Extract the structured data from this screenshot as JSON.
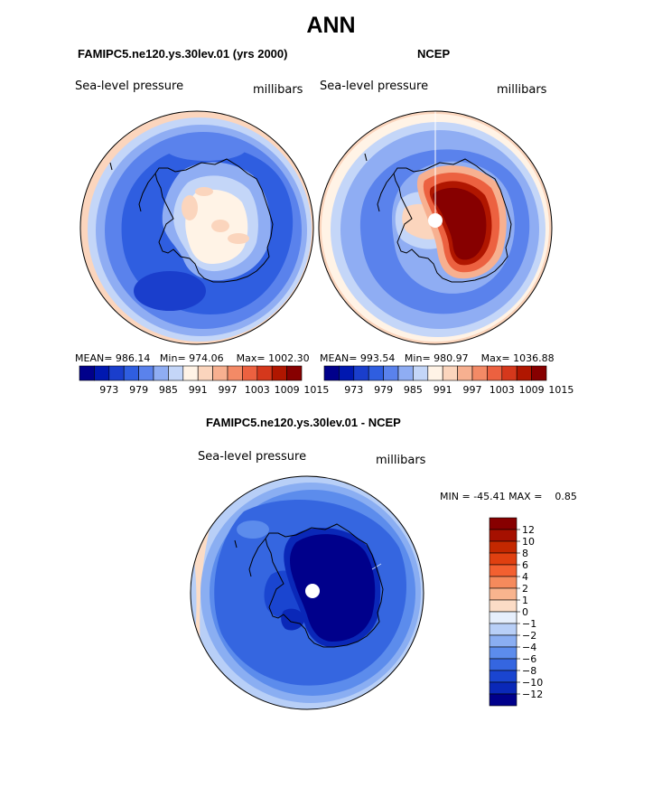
{
  "title": "ANN",
  "panels": [
    {
      "id": "model",
      "title": "FAMIPC5.ne120.ys.30lev.01 (yrs 2000)",
      "variable": "Sea-level pressure",
      "units": "millibars",
      "mean_label": "MEAN=",
      "mean": "986.14",
      "min_label": "Min=",
      "min": "974.06",
      "max_label": "Max=",
      "max": "1002.30"
    },
    {
      "id": "obs",
      "title": "NCEP",
      "variable": "Sea-level pressure",
      "units": "millibars",
      "mean_label": "MEAN=",
      "mean": "993.54",
      "min_label": "Min=",
      "min": "980.97",
      "max_label": "Max=",
      "max": "1036.88"
    },
    {
      "id": "diff",
      "title": "FAMIPC5.ne120.ys.30lev.01 - NCEP",
      "variable": "Sea-level pressure",
      "units": "millibars",
      "min_label": "MIN =",
      "min": "-45.41",
      "max_label": "MAX =",
      "max": "0.85"
    }
  ],
  "colorbar_horizontal": {
    "tick_labels": [
      "973",
      "979",
      "985",
      "991",
      "997",
      "1003",
      "1009",
      "1015"
    ],
    "colors": [
      "#00008b",
      "#0018b0",
      "#1a3ecc",
      "#2f5ee0",
      "#5a82ec",
      "#8fadf3",
      "#c4d6f8",
      "#fff3e6",
      "#fbd5bd",
      "#f7b090",
      "#f38a66",
      "#ec6140",
      "#d5381c",
      "#b01600",
      "#870000"
    ]
  },
  "colorbar_vertical": {
    "tick_labels": [
      "12",
      "10",
      "8",
      "6",
      "4",
      "2",
      "1",
      "0",
      "−1",
      "−2",
      "−4",
      "−6",
      "−8",
      "−10",
      "−12"
    ],
    "colors": [
      "#870000",
      "#a51000",
      "#c42800",
      "#e04010",
      "#f36030",
      "#f58a5c",
      "#f8b48e",
      "#fbdcc6",
      "#e6effc",
      "#b8cff7",
      "#8aaef2",
      "#5c8cec",
      "#3566e0",
      "#1a45d0",
      "#0a28b8",
      "#00008b"
    ]
  }
}
